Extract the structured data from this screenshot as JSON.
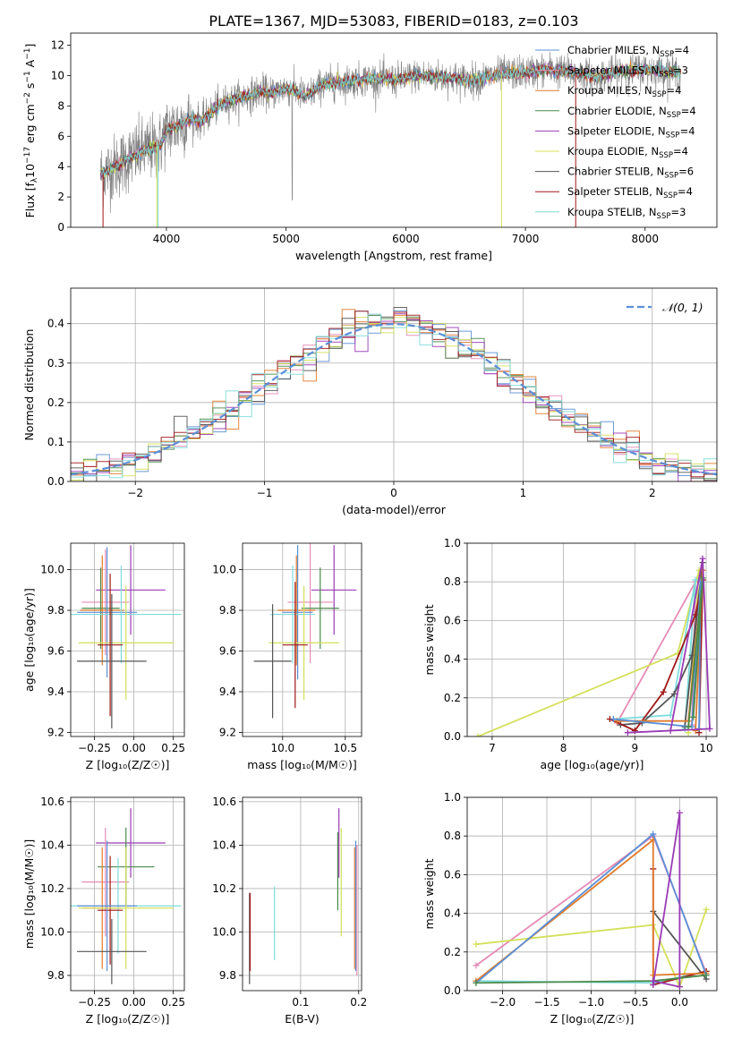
{
  "chart_data": [
    {
      "id": "spectrum",
      "type": "line",
      "title": "PLATE=1367, MJD=53083, FIBERID=0183, z=0.103",
      "xlabel": "wavelength [Angstrom, rest frame]",
      "ylabel_parts": [
        "Flux [f",
        "λ",
        "10",
        "−17",
        " erg cm",
        "−2",
        " s",
        "−1",
        " A",
        "−1",
        "]"
      ],
      "xlim": [
        3200,
        8600
      ],
      "ylim": [
        0,
        12.8
      ],
      "xticks": [
        4000,
        5000,
        6000,
        7000,
        8000
      ],
      "yticks": [
        0,
        2,
        4,
        6,
        8,
        10,
        12
      ],
      "grid": false,
      "legend_position": "right",
      "data_color": "#808080",
      "legend": [
        {
          "label": "Chabrier MILES, N",
          "sub": "SSP",
          "tail": "=4",
          "color": "#5b8fd6"
        },
        {
          "label": "Salpeter MILES, N",
          "sub": "SSP",
          "tail": "=3",
          "color": "#e58bb5"
        },
        {
          "label": "Kroupa MILES, N",
          "sub": "SSP",
          "tail": "=4",
          "color": "#e07b2b"
        },
        {
          "label": "Chabrier ELODIE, N",
          "sub": "SSP",
          "tail": "=4",
          "color": "#4a8a4a"
        },
        {
          "label": "Salpeter ELODIE, N",
          "sub": "SSP",
          "tail": "=4",
          "color": "#9a3bb5"
        },
        {
          "label": "Kroupa ELODIE, N",
          "sub": "SSP",
          "tail": "=4",
          "color": "#d4e05a"
        },
        {
          "label": "Chabrier STELIB, N",
          "sub": "SSP",
          "tail": "=6",
          "color": "#555555"
        },
        {
          "label": "Salpeter STELIB, N",
          "sub": "SSP",
          "tail": "=4",
          "color": "#a01818"
        },
        {
          "label": "Kroupa STELIB, N",
          "sub": "SSP",
          "tail": "=3",
          "color": "#7fdcdc"
        }
      ],
      "continuum": [
        [
          3450,
          3.5
        ],
        [
          3600,
          4.1
        ],
        [
          3700,
          4.6
        ],
        [
          3800,
          5.0
        ],
        [
          3950,
          5.4
        ],
        [
          4000,
          6.4
        ],
        [
          4100,
          6.7
        ],
        [
          4200,
          7.2
        ],
        [
          4300,
          7.0
        ],
        [
          4400,
          7.8
        ],
        [
          4500,
          8.3
        ],
        [
          4600,
          8.5
        ],
        [
          4700,
          8.7
        ],
        [
          4800,
          9.0
        ],
        [
          4860,
          8.8
        ],
        [
          5000,
          9.2
        ],
        [
          5170,
          8.6
        ],
        [
          5300,
          9.4
        ],
        [
          5500,
          9.6
        ],
        [
          5700,
          9.8
        ],
        [
          5900,
          9.7
        ],
        [
          6100,
          10.0
        ],
        [
          6300,
          9.9
        ],
        [
          6563,
          9.7
        ],
        [
          6800,
          10.1
        ],
        [
          7000,
          10.2
        ],
        [
          7200,
          10.4
        ],
        [
          7400,
          10.2
        ],
        [
          7600,
          9.9
        ],
        [
          7800,
          10.3
        ],
        [
          8000,
          10.4
        ],
        [
          8300,
          10.2
        ]
      ]
    },
    {
      "id": "residuals",
      "type": "area",
      "xlabel": "(data-model)/error",
      "ylabel": "Normed distribution",
      "xlim": [
        -2.5,
        2.5
      ],
      "ylim": [
        0,
        0.49
      ],
      "xticks": [
        -2,
        -1,
        0,
        1,
        2
      ],
      "yticks": [
        0.0,
        0.1,
        0.2,
        0.3,
        0.4
      ],
      "grid": true,
      "legend_position": "top-right",
      "legend_label": "𝒩(0, 1)",
      "gauss_color": "#5b8fd6",
      "bin_width": 0.1
    },
    {
      "id": "age_vs_Z",
      "type": "scatter",
      "xlabel": "Z [log₁₀(Z/Z☉)]",
      "ylabel": "age  [log₁₀(age/yr)]",
      "xlim": [
        -0.4,
        0.32
      ],
      "ylim": [
        9.18,
        10.13
      ],
      "xticks": [
        -0.25,
        0.0,
        0.25
      ],
      "yticks": [
        9.2,
        9.4,
        9.6,
        9.8,
        10.0
      ],
      "grid": true,
      "points": [
        {
          "x": -0.02,
          "y": 9.9,
          "xerr": 0.22,
          "yerr": 0.22,
          "color": "#9a3bb5"
        },
        {
          "x": -0.18,
          "y": 9.84,
          "xerr": 0.15,
          "yerr": 0.26,
          "color": "#e58bb5"
        },
        {
          "x": -0.21,
          "y": 9.81,
          "xerr": 0.12,
          "yerr": 0.2,
          "color": "#4a8a4a"
        },
        {
          "x": -0.2,
          "y": 9.8,
          "xerr": 0.14,
          "yerr": 0.27,
          "color": "#e07b2b"
        },
        {
          "x": -0.17,
          "y": 9.79,
          "xerr": 0.19,
          "yerr": 0.32,
          "color": "#5b8fd6"
        },
        {
          "x": -0.08,
          "y": 9.78,
          "xerr": 0.38,
          "yerr": 0.24,
          "color": "#7fdcdc"
        },
        {
          "x": -0.05,
          "y": 9.64,
          "xerr": 0.3,
          "yerr": 0.28,
          "color": "#d4e05a"
        },
        {
          "x": -0.15,
          "y": 9.63,
          "xerr": 0.08,
          "yerr": 0.35,
          "color": "#a01818"
        },
        {
          "x": -0.14,
          "y": 9.55,
          "xerr": 0.22,
          "yerr": 0.33,
          "color": "#555555"
        }
      ]
    },
    {
      "id": "age_vs_mass",
      "type": "scatter",
      "xlabel": "mass [log₁₀(M/M☉)]",
      "ylabel": "",
      "xlim": [
        9.68,
        10.63
      ],
      "ylim": [
        9.18,
        10.13
      ],
      "xticks": [
        10.0,
        10.5
      ],
      "yticks": [
        9.2,
        9.4,
        9.6,
        9.8,
        10.0
      ],
      "grid": true,
      "points": [
        {
          "x": 10.41,
          "y": 9.9,
          "xerr": 0.18,
          "yerr": 0.22,
          "color": "#9a3bb5"
        },
        {
          "x": 10.22,
          "y": 9.84,
          "xerr": 0.18,
          "yerr": 0.3,
          "color": "#e58bb5"
        },
        {
          "x": 10.3,
          "y": 9.81,
          "xerr": 0.15,
          "yerr": 0.2,
          "color": "#4a8a4a"
        },
        {
          "x": 10.11,
          "y": 9.8,
          "xerr": 0.15,
          "yerr": 0.27,
          "color": "#e07b2b"
        },
        {
          "x": 10.12,
          "y": 9.79,
          "xerr": 0.12,
          "yerr": 0.33,
          "color": "#5b8fd6"
        },
        {
          "x": 10.08,
          "y": 9.78,
          "xerr": 0.18,
          "yerr": 0.24,
          "color": "#7fdcdc"
        },
        {
          "x": 10.17,
          "y": 9.64,
          "xerr": 0.28,
          "yerr": 0.28,
          "color": "#d4e05a"
        },
        {
          "x": 10.1,
          "y": 9.63,
          "xerr": 0.1,
          "yerr": 0.31,
          "color": "#a01818"
        },
        {
          "x": 9.92,
          "y": 9.55,
          "xerr": 0.15,
          "yerr": 0.28,
          "color": "#555555"
        }
      ]
    },
    {
      "id": "mass_vs_Z",
      "type": "scatter",
      "xlabel": "Z [log₁₀(Z/Z☉)]",
      "ylabel": "mass [log₁₀(M/M☉)]",
      "xlim": [
        -0.4,
        0.32
      ],
      "ylim": [
        9.73,
        10.62
      ],
      "xticks": [
        -0.25,
        0.0,
        0.25
      ],
      "yticks": [
        9.8,
        10.0,
        10.2,
        10.4,
        10.6
      ],
      "grid": true,
      "points": [
        {
          "x": -0.02,
          "y": 10.41,
          "xerr": 0.22,
          "yerr": 0.16,
          "color": "#9a3bb5"
        },
        {
          "x": -0.05,
          "y": 10.3,
          "xerr": 0.18,
          "yerr": 0.18,
          "color": "#4a8a4a"
        },
        {
          "x": -0.18,
          "y": 10.23,
          "xerr": 0.15,
          "yerr": 0.25,
          "color": "#e58bb5"
        },
        {
          "x": -0.1,
          "y": 10.12,
          "xerr": 0.4,
          "yerr": 0.22,
          "color": "#7fdcdc"
        },
        {
          "x": -0.2,
          "y": 10.11,
          "xerr": 0.12,
          "yerr": 0.28,
          "color": "#e07b2b"
        },
        {
          "x": -0.15,
          "y": 10.1,
          "xerr": 0.08,
          "yerr": 0.25,
          "color": "#a01818"
        },
        {
          "x": -0.17,
          "y": 10.12,
          "xerr": 0.19,
          "yerr": 0.3,
          "color": "#5b8fd6"
        },
        {
          "x": -0.05,
          "y": 10.11,
          "xerr": 0.3,
          "yerr": 0.28,
          "color": "#d4e05a"
        },
        {
          "x": -0.14,
          "y": 9.91,
          "xerr": 0.22,
          "yerr": 0.15,
          "color": "#555555"
        }
      ]
    },
    {
      "id": "mass_vs_EBV",
      "type": "scatter",
      "xlabel": "E(B-V)",
      "ylabel": "",
      "xlim": [
        0.0,
        0.205
      ],
      "ylim": [
        9.73,
        10.62
      ],
      "xticks": [
        0.1,
        0.2
      ],
      "yticks": [
        9.8,
        10.0,
        10.2,
        10.4,
        10.6
      ],
      "grid": true,
      "points": [
        {
          "x": 0.012,
          "y": 9.97,
          "xerr": 0,
          "yerr": 0.21,
          "color": "#555555"
        },
        {
          "x": 0.013,
          "y": 10.0,
          "xerr": 0,
          "yerr": 0.18,
          "color": "#a01818"
        },
        {
          "x": 0.055,
          "y": 10.04,
          "xerr": 0,
          "yerr": 0.17,
          "color": "#7fdcdc"
        },
        {
          "x": 0.164,
          "y": 10.28,
          "xerr": 0,
          "yerr": 0.18,
          "color": "#4a8a4a"
        },
        {
          "x": 0.166,
          "y": 10.41,
          "xerr": 0,
          "yerr": 0.16,
          "color": "#9a3bb5"
        },
        {
          "x": 0.17,
          "y": 10.23,
          "xerr": 0,
          "yerr": 0.25,
          "color": "#d4e05a"
        },
        {
          "x": 0.193,
          "y": 10.11,
          "xerr": 0,
          "yerr": 0.28,
          "color": "#e07b2b"
        },
        {
          "x": 0.195,
          "y": 10.12,
          "xerr": 0,
          "yerr": 0.3,
          "color": "#5b8fd6"
        },
        {
          "x": 0.197,
          "y": 10.1,
          "xerr": 0,
          "yerr": 0.3,
          "color": "#e58bb5"
        }
      ]
    },
    {
      "id": "weight_vs_age",
      "type": "line",
      "xlabel": "age  [log₁₀(age/yr)]",
      "ylabel": "mass weight",
      "xlim": [
        6.65,
        10.15
      ],
      "ylim": [
        0,
        1.0
      ],
      "xticks": [
        7,
        8,
        9,
        10
      ],
      "yticks": [
        0.0,
        0.2,
        0.4,
        0.6,
        0.8,
        1.0
      ],
      "grid": true,
      "series": [
        {
          "color": "#e58bb5",
          "points": [
            [
              8.75,
              0.07
            ],
            [
              9.85,
              0.8
            ],
            [
              9.8,
              0.06
            ]
          ]
        },
        {
          "color": "#d4e05a",
          "points": [
            [
              6.8,
              0.0
            ],
            [
              9.6,
              0.43
            ],
            [
              9.9,
              0.86
            ],
            [
              9.75,
              0.02
            ]
          ]
        },
        {
          "color": "#7fdcdc",
          "points": [
            [
              8.7,
              0.09
            ],
            [
              9.5,
              0.11
            ],
            [
              9.85,
              0.81
            ],
            [
              9.7,
              0.04
            ]
          ]
        },
        {
          "color": "#555555",
          "points": [
            [
              8.8,
              0.06
            ],
            [
              9.1,
              0.07
            ],
            [
              9.55,
              0.22
            ],
            [
              9.8,
              0.42
            ],
            [
              9.95,
              0.9
            ],
            [
              9.7,
              0.05
            ]
          ]
        },
        {
          "color": "#a01818",
          "points": [
            [
              8.65,
              0.09
            ],
            [
              9.0,
              0.03
            ],
            [
              9.4,
              0.23
            ],
            [
              9.85,
              0.63
            ],
            [
              9.95,
              0.81
            ],
            [
              9.9,
              0.02
            ]
          ]
        },
        {
          "color": "#e07b2b",
          "points": [
            [
              8.75,
              0.08
            ],
            [
              9.75,
              0.08
            ],
            [
              9.95,
              0.86
            ],
            [
              9.85,
              0.03
            ]
          ]
        },
        {
          "color": "#5b8fd6",
          "points": [
            [
              8.7,
              0.09
            ],
            [
              9.8,
              0.05
            ],
            [
              9.92,
              0.8
            ],
            [
              9.9,
              0.04
            ]
          ]
        },
        {
          "color": "#4a8a4a",
          "points": [
            [
              9.75,
              0.05
            ],
            [
              9.95,
              0.82
            ],
            [
              9.82,
              0.1
            ]
          ]
        },
        {
          "color": "#9a3bb5",
          "points": [
            [
              9.5,
              0.03
            ],
            [
              9.95,
              0.92
            ],
            [
              10.05,
              0.04
            ],
            [
              8.9,
              0.02
            ]
          ]
        }
      ]
    },
    {
      "id": "weight_vs_Z",
      "type": "line",
      "xlabel": "Z [log₁₀(Z/Z☉)]",
      "ylabel": "mass weight",
      "xlim": [
        -2.4,
        0.42
      ],
      "ylim": [
        0,
        1.0
      ],
      "xticks": [
        -2.0,
        -1.5,
        -1.0,
        -0.5,
        0.0
      ],
      "yticks": [
        0.0,
        0.2,
        0.4,
        0.6,
        0.8,
        1.0
      ],
      "grid": true,
      "series": [
        {
          "color": "#e58bb5",
          "points": [
            [
              -2.3,
              0.13
            ],
            [
              -0.3,
              0.8
            ],
            [
              0.3,
              0.09
            ]
          ]
        },
        {
          "color": "#d4e05a",
          "points": [
            [
              -2.3,
              0.24
            ],
            [
              -0.3,
              0.34
            ],
            [
              0.0,
              0.02
            ],
            [
              0.3,
              0.42
            ]
          ]
        },
        {
          "color": "#7fdcdc",
          "points": [
            [
              -2.3,
              0.05
            ],
            [
              -0.3,
              0.04
            ],
            [
              0.3,
              0.1
            ]
          ]
        },
        {
          "color": "#555555",
          "points": [
            [
              -0.3,
              0.41
            ],
            [
              0.3,
              0.06
            ]
          ]
        },
        {
          "color": "#a01818",
          "points": [
            [
              -0.3,
              0.63
            ],
            [
              -0.3,
              0.03
            ],
            [
              0.3,
              0.1
            ]
          ]
        },
        {
          "color": "#e07b2b",
          "points": [
            [
              -2.3,
              0.05
            ],
            [
              -0.3,
              0.78
            ],
            [
              -0.3,
              0.08
            ],
            [
              0.3,
              0.09
            ]
          ]
        },
        {
          "color": "#5b8fd6",
          "points": [
            [
              -2.3,
              0.04
            ],
            [
              -0.3,
              0.81
            ],
            [
              0.3,
              0.08
            ]
          ]
        },
        {
          "color": "#4a8a4a",
          "points": [
            [
              -2.3,
              0.04
            ],
            [
              -0.3,
              0.05
            ],
            [
              0.3,
              0.08
            ]
          ]
        },
        {
          "color": "#9a3bb5",
          "points": [
            [
              -0.3,
              0.03
            ],
            [
              0.0,
              0.92
            ],
            [
              0.0,
              0.02
            ],
            [
              -0.3,
              0.05
            ]
          ]
        }
      ]
    }
  ]
}
